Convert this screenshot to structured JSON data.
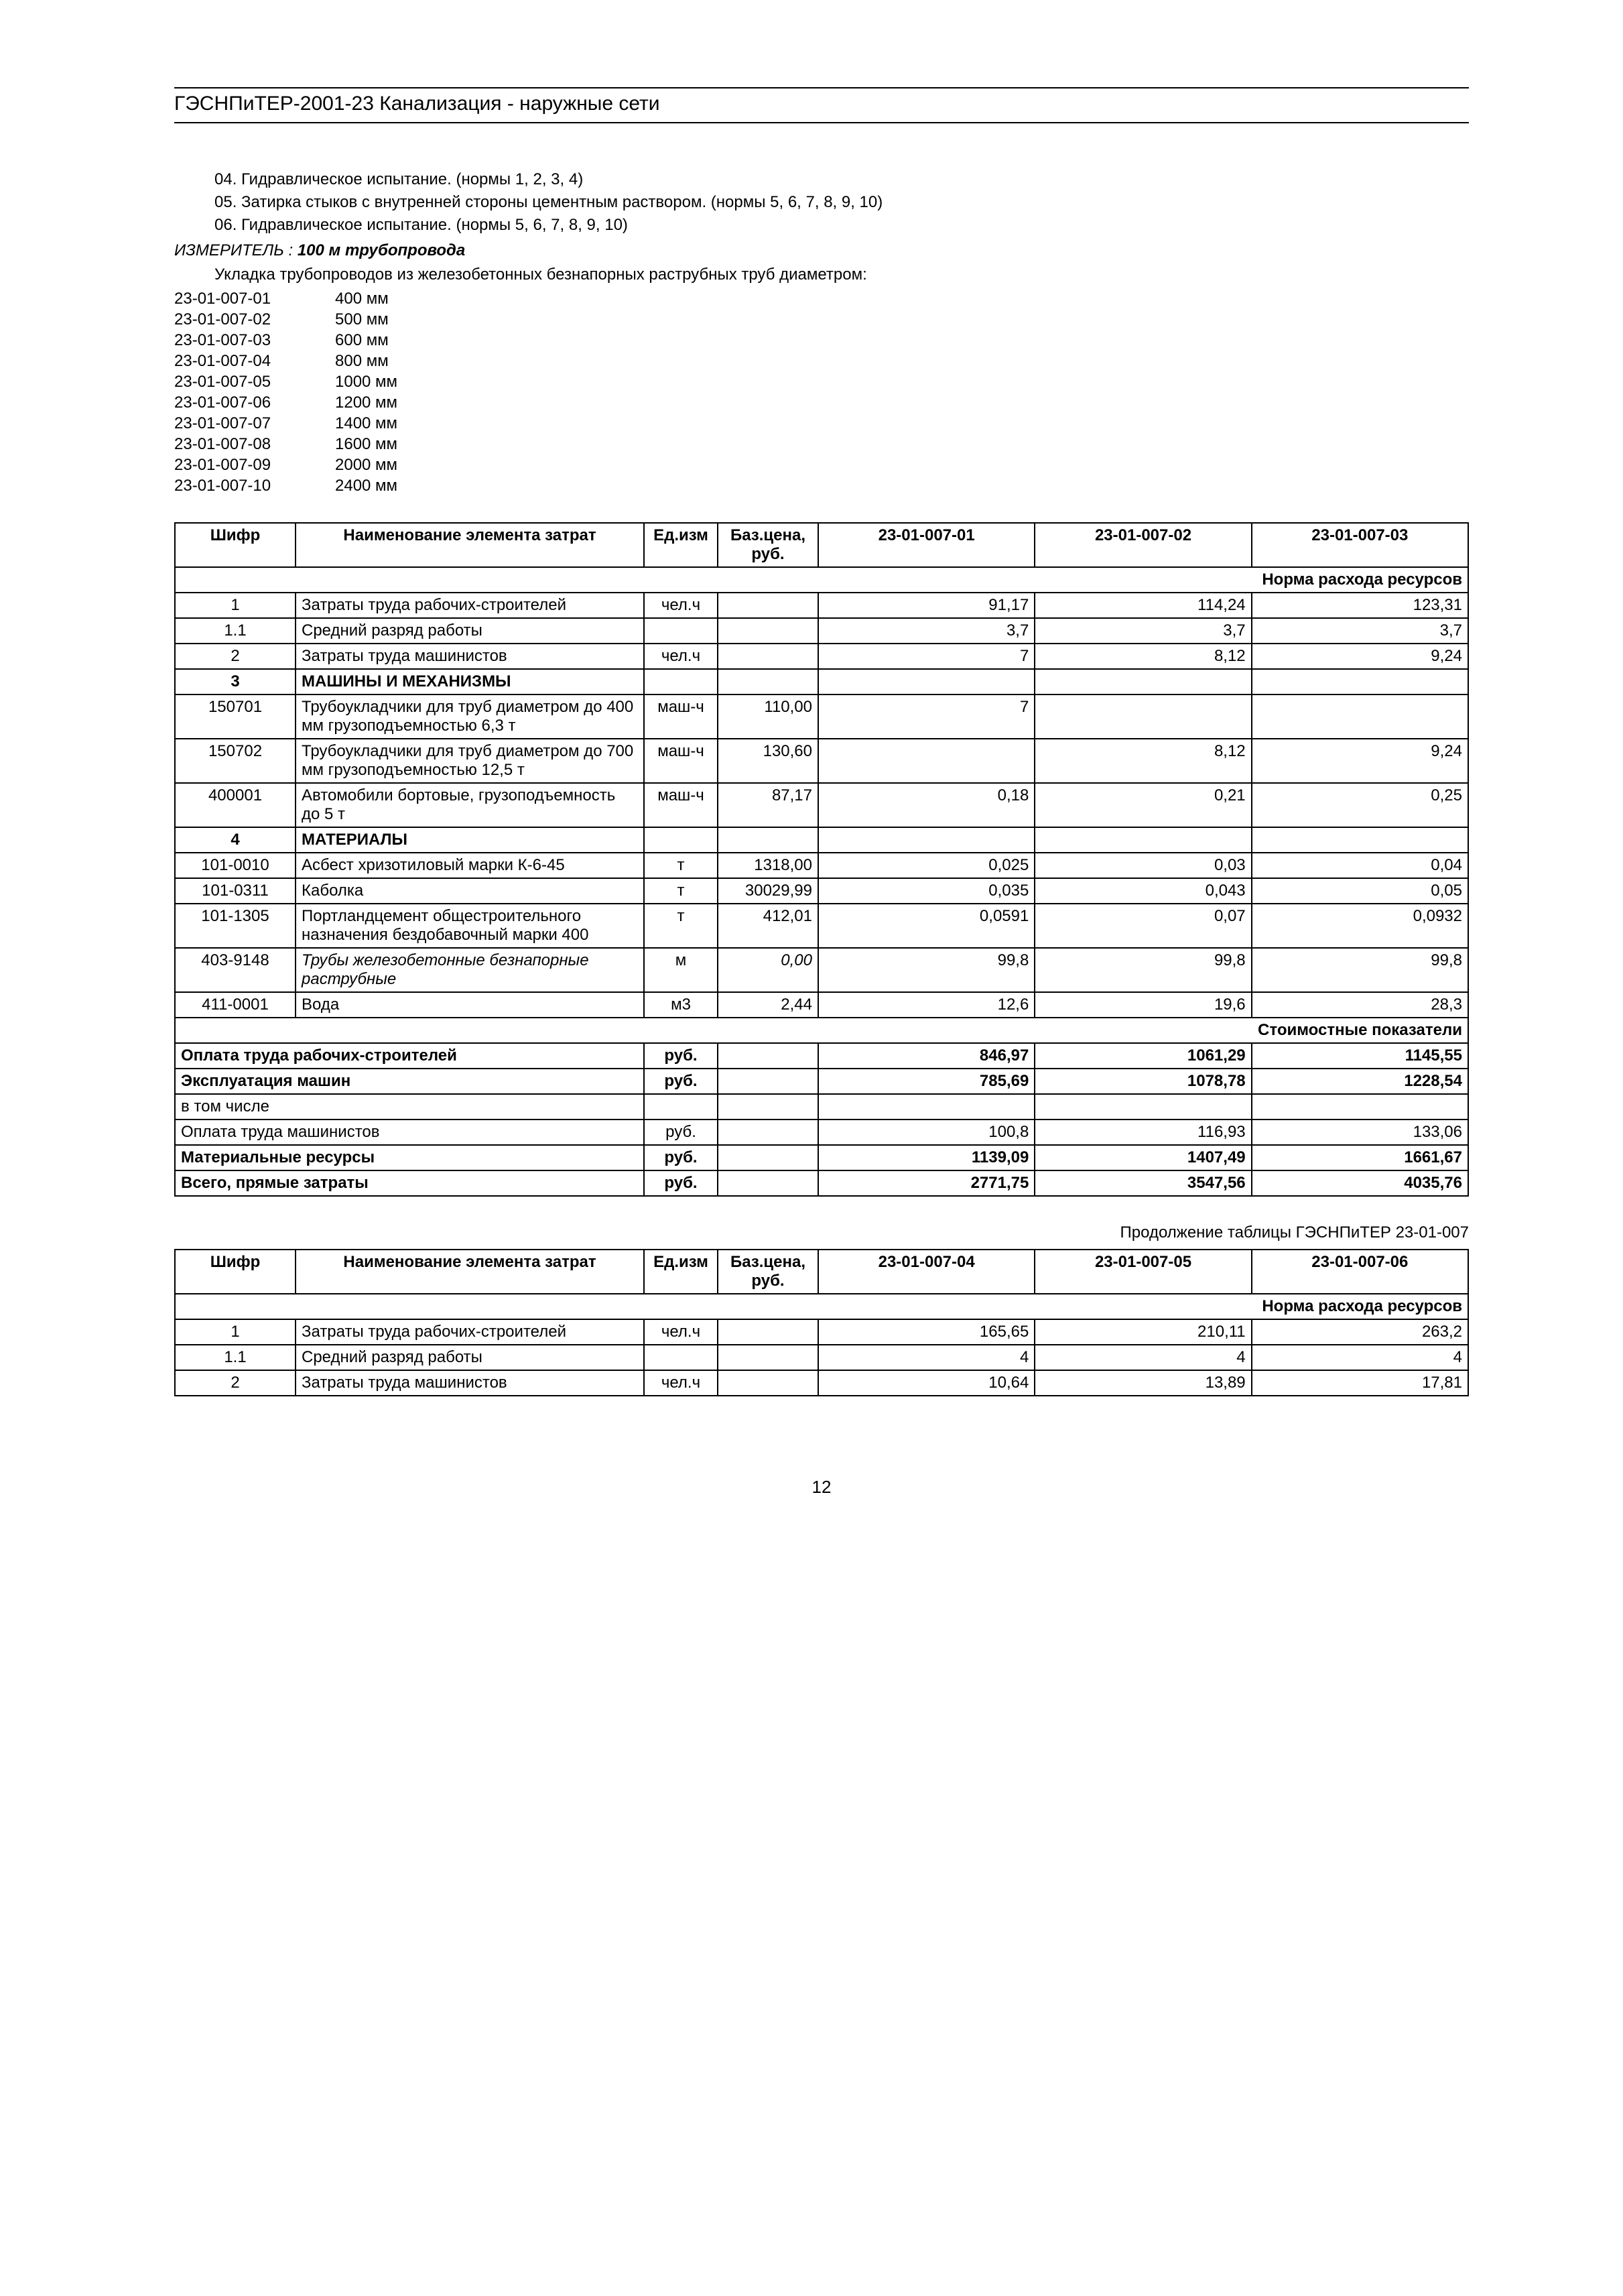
{
  "header": "ГЭСНПиТЕР-2001-23 Канализация - наружные сети",
  "notes": [
    "04. Гидравлическое испытание. (нормы 1, 2, 3, 4)",
    "05. Затирка стыков с внутренней стороны цементным раствором. (нормы 5, 6, 7, 8, 9, 10)",
    "06. Гидравлическое испытание. (нормы 5, 6, 7, 8, 9, 10)"
  ],
  "meter_label": "ИЗМЕРИТЕЛЬ : ",
  "meter_value": "100 м трубопровода",
  "intro": "Укладка трубопроводов из железобетонных безнапорных раструбных труб диаметром:",
  "codes": [
    {
      "c": "23-01-007-01",
      "d": "400 мм"
    },
    {
      "c": "23-01-007-02",
      "d": "500 мм"
    },
    {
      "c": "23-01-007-03",
      "d": "600 мм"
    },
    {
      "c": "23-01-007-04",
      "d": "800 мм"
    },
    {
      "c": "23-01-007-05",
      "d": "1000 мм"
    },
    {
      "c": "23-01-007-06",
      "d": "1200 мм"
    },
    {
      "c": "23-01-007-07",
      "d": "1400 мм"
    },
    {
      "c": "23-01-007-08",
      "d": "1600 мм"
    },
    {
      "c": "23-01-007-09",
      "d": "2000 мм"
    },
    {
      "c": "23-01-007-10",
      "d": "2400 мм"
    }
  ],
  "table1": {
    "head": [
      "Шифр",
      "Наименование элемента затрат",
      "Ед.изм",
      "Баз.цена, руб.",
      "23-01-007-01",
      "23-01-007-02",
      "23-01-007-03"
    ],
    "section_norm": "Норма расхода ресурсов",
    "rows_a": [
      {
        "c": "1",
        "n": "Затраты труда рабочих-строителей",
        "u": "чел.ч",
        "p": "",
        "v": [
          "91,17",
          "114,24",
          "123,31"
        ]
      },
      {
        "c": "1.1",
        "n": "Средний разряд работы",
        "u": "",
        "p": "",
        "v": [
          "3,7",
          "3,7",
          "3,7"
        ]
      }
    ],
    "row_b": {
      "c": "2",
      "n": "Затраты труда машинистов",
      "u": "чел.ч",
      "p": "",
      "v": [
        "7",
        "8,12",
        "9,24"
      ]
    },
    "mach_head": {
      "c": "3",
      "n": "МАШИНЫ И МЕХАНИЗМЫ"
    },
    "mach_rows": [
      {
        "c": "150701",
        "n": "Трубоукладчики для труб диаметром до 400 мм грузоподъемностью 6,3 т",
        "u": "маш-ч",
        "p": "110,00",
        "v": [
          "7",
          "",
          ""
        ]
      },
      {
        "c": "150702",
        "n": "Трубоукладчики для труб диаметром до 700 мм грузоподъемностью 12,5 т",
        "u": "маш-ч",
        "p": "130,60",
        "v": [
          "",
          "8,12",
          "9,24"
        ]
      },
      {
        "c": "400001",
        "n": "Автомобили бортовые, грузоподъемность до 5 т",
        "u": "маш-ч",
        "p": "87,17",
        "v": [
          "0,18",
          "0,21",
          "0,25"
        ]
      }
    ],
    "mat_head": {
      "c": "4",
      "n": "МАТЕРИАЛЫ"
    },
    "mat_rows": [
      {
        "c": "101-0010",
        "n": "Асбест хризотиловый марки К-6-45",
        "u": "т",
        "p": "1318,00",
        "v": [
          "0,025",
          "0,03",
          "0,04"
        ]
      },
      {
        "c": "101-0311",
        "n": "Каболка",
        "u": "т",
        "p": "30029,99",
        "v": [
          "0,035",
          "0,043",
          "0,05"
        ]
      },
      {
        "c": "101-1305",
        "n": "Портландцемент общестроительного назначения бездобавочный марки 400",
        "u": "т",
        "p": "412,01",
        "v": [
          "0,0591",
          "0,07",
          "0,0932"
        ]
      },
      {
        "c": "403-9148",
        "n": "Трубы железобетонные безнапорные раструбные",
        "u": "м",
        "p": "0,00",
        "v": [
          "99,8",
          "99,8",
          "99,8"
        ],
        "italic": true
      },
      {
        "c": "411-0001",
        "n": "Вода",
        "u": "м3",
        "p": "2,44",
        "v": [
          "12,6",
          "19,6",
          "28,3"
        ]
      }
    ],
    "section_cost": "Стоимостные показатели",
    "cost_rows": [
      {
        "n": "Оплата труда рабочих-строителей",
        "u": "руб.",
        "v": [
          "846,97",
          "1061,29",
          "1145,55"
        ],
        "bold": true
      },
      {
        "n": "Эксплуатация машин",
        "u": "руб.",
        "v": [
          "785,69",
          "1078,78",
          "1228,54"
        ],
        "bold": true
      },
      {
        "n": "в том числе",
        "u": "",
        "v": [
          "",
          "",
          ""
        ],
        "bold": false
      },
      {
        "n": "Оплата труда машинистов",
        "u": "руб.",
        "v": [
          "100,8",
          "116,93",
          "133,06"
        ],
        "bold": false
      },
      {
        "n": "Материальные ресурсы",
        "u": "руб.",
        "v": [
          "1139,09",
          "1407,49",
          "1661,67"
        ],
        "bold": true
      },
      {
        "n": "Всего, прямые затраты",
        "u": "руб.",
        "v": [
          "2771,75",
          "3547,56",
          "4035,76"
        ],
        "bold": true
      }
    ]
  },
  "cont_caption": "Продолжение таблицы ГЭСНПиТЕР 23-01-007",
  "table2": {
    "head": [
      "Шифр",
      "Наименование элемента затрат",
      "Ед.изм",
      "Баз.цена, руб.",
      "23-01-007-04",
      "23-01-007-05",
      "23-01-007-06"
    ],
    "section_norm": "Норма расхода ресурсов",
    "rows_a": [
      {
        "c": "1",
        "n": "Затраты труда рабочих-строителей",
        "u": "чел.ч",
        "p": "",
        "v": [
          "165,65",
          "210,11",
          "263,2"
        ]
      },
      {
        "c": "1.1",
        "n": "Средний разряд работы",
        "u": "",
        "p": "",
        "v": [
          "4",
          "4",
          "4"
        ]
      }
    ],
    "row_b": {
      "c": "2",
      "n": "Затраты труда машинистов",
      "u": "чел.ч",
      "p": "",
      "v": [
        "10,64",
        "13,89",
        "17,81"
      ]
    }
  },
  "page_number": "12"
}
